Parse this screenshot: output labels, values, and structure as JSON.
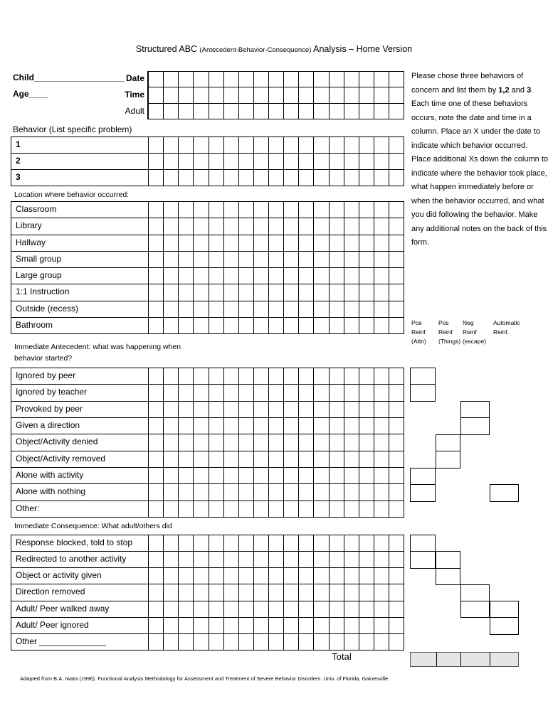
{
  "title": {
    "part1": "Structured ABC ",
    "part2": "(Antecedent-Behavior-Consequence)",
    "part3": " Analysis – Home Version"
  },
  "fields": {
    "child": "Child___________________",
    "age": "Age____",
    "date": "Date",
    "time": "Time",
    "adult": "Adult"
  },
  "grid": {
    "columns": 17,
    "date_rows": 3
  },
  "behavior_section": {
    "header": "Behavior (List specific problem)",
    "rows": [
      "1",
      "2",
      "3"
    ]
  },
  "location_section": {
    "header": "Location where behavior occurred:",
    "rows": [
      "Classroom",
      "Library",
      "Hallway",
      "Small group",
      "Large group",
      "1:1 Instruction",
      "Outside (recess)",
      "Bathroom"
    ]
  },
  "antecedent_section": {
    "header_line1": "Immediate Antecedent: what was happening when",
    "header_line2": "behavior started?",
    "rows": [
      "Ignored by peer",
      "Ignored by teacher",
      "Provoked by peer",
      "Given a direction",
      "Object/Activity denied",
      "Object/Activity removed",
      "Alone with activity",
      "Alone with nothing",
      "Other:"
    ]
  },
  "consequence_section": {
    "header": "Immediate Consequence: What adult/others did",
    "rows": [
      "Response blocked, told to stop",
      "Redirected to another activity",
      "Object or activity given",
      "Direction removed",
      "Adult/ Peer walked away",
      "Adult/ Peer ignored",
      "Other ______________"
    ]
  },
  "instructions": {
    "part1": "Please chose three behaviors of concern and list them by ",
    "bold1": "1,2",
    "part2": " and ",
    "bold2": "3",
    "part3": ".  Each time one of these behaviors occurs, note the date and time in a column.  Place an X under the date to indicate which behavior occurred.  Place additional Xs down the column to indicate where the behavior took place, what happen immediately before or when the behavior occurred, and what you did following the behavior.  Make any additional notes on the back of this form."
  },
  "reinforcement_columns": [
    {
      "label": [
        "Pos",
        "Reinf",
        "(Attn)"
      ]
    },
    {
      "label": [
        "Pos",
        "Reinf",
        "(Things)"
      ]
    },
    {
      "label": [
        "Neg",
        "Reinf",
        "(escape)"
      ]
    },
    {
      "label": [
        "Automatic",
        "Reinf."
      ]
    }
  ],
  "antecedent_boxes": [
    {
      "column": 1,
      "rows": [
        1,
        2
      ]
    },
    {
      "column": 3,
      "rows": [
        3,
        4
      ]
    },
    {
      "column": 2,
      "rows": [
        5,
        6
      ]
    },
    {
      "column": 1,
      "rows": [
        7,
        8
      ]
    },
    {
      "column": 4,
      "rows": [
        8
      ]
    }
  ],
  "consequence_boxes": [
    {
      "column": 1,
      "rows": [
        1,
        2
      ]
    },
    {
      "column": 2,
      "rows": [
        2,
        3
      ]
    },
    {
      "column": 3,
      "rows": [
        4,
        5
      ]
    },
    {
      "column": 4,
      "rows": [
        5,
        6
      ]
    }
  ],
  "total_label": "Total",
  "footer": "Adapted from B.A. Iwata (1996). Functional Analysis Methodology for Assessment and Treatment of Severe Behavior Disorders.  Univ. of Florida, Gainesville.",
  "colors": {
    "total_fill": "#e5e5e5",
    "line": "#000000"
  }
}
